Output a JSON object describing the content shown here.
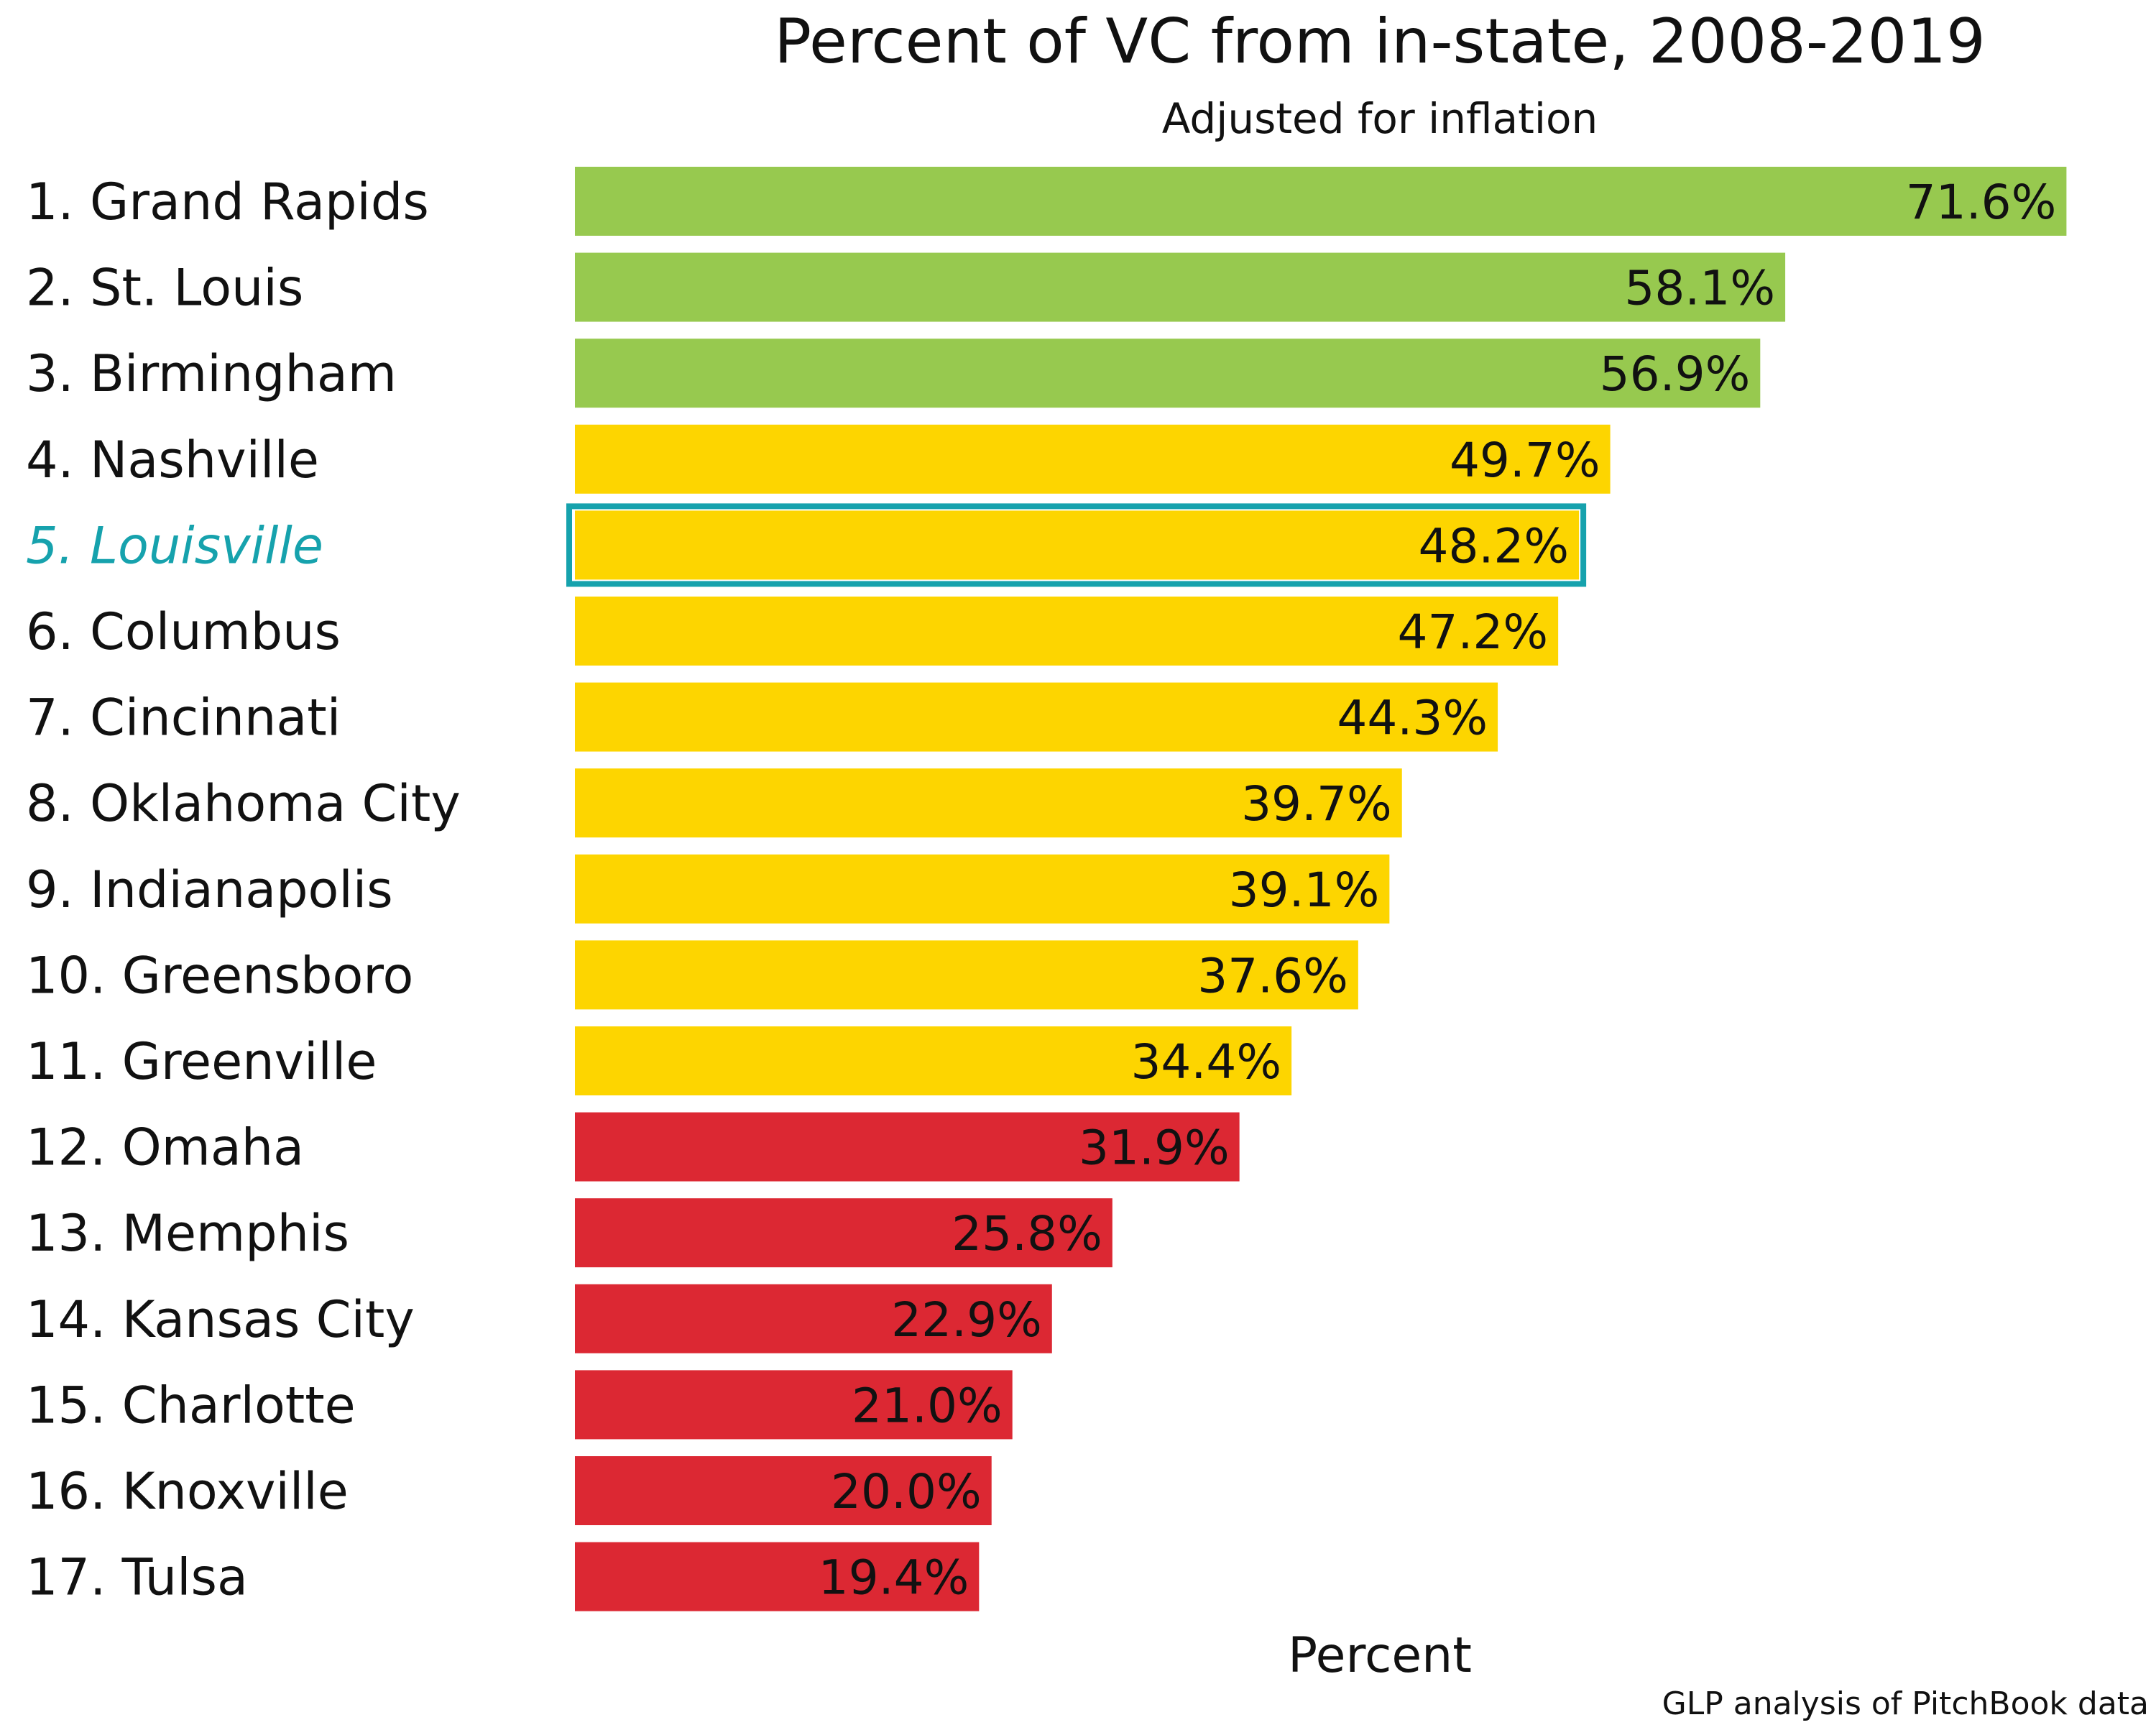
{
  "chart_data": {
    "type": "bar",
    "orientation": "horizontal",
    "title": "Percent of VC from in-state, 2008-2019",
    "subtitle": "Adjusted for inflation",
    "xlabel": "Percent",
    "ylabel": "",
    "source": "GLP analysis of PitchBook data",
    "xlim": [
      0,
      72
    ],
    "grid": false,
    "categories": [
      "1. Grand Rapids",
      "2. St. Louis",
      "3. Birmingham",
      "4. Nashville",
      "5. Louisville",
      "6. Columbus",
      "7. Cincinnati",
      "8. Oklahoma City",
      "9. Indianapolis",
      "10. Greensboro",
      "11. Greenville",
      "12. Omaha",
      "13. Memphis",
      "14. Kansas City",
      "15. Charlotte",
      "16. Knoxville",
      "17. Tulsa"
    ],
    "values": [
      71.6,
      58.1,
      56.9,
      49.7,
      48.2,
      47.2,
      44.3,
      39.7,
      39.1,
      37.6,
      34.4,
      31.9,
      25.8,
      22.9,
      21.0,
      20.0,
      19.4
    ],
    "value_labels": [
      "71.6%",
      "58.1%",
      "56.9%",
      "49.7%",
      "48.2%",
      "47.2%",
      "44.3%",
      "39.7%",
      "39.1%",
      "37.6%",
      "34.4%",
      "31.9%",
      "25.8%",
      "22.9%",
      "21.0%",
      "20.0%",
      "19.4%"
    ],
    "bar_colors": [
      "#97c94f",
      "#97c94f",
      "#97c94f",
      "#fdd500",
      "#fdd500",
      "#fdd500",
      "#fdd500",
      "#fdd500",
      "#fdd500",
      "#fdd500",
      "#fdd500",
      "#dc2833",
      "#dc2833",
      "#dc2833",
      "#dc2833",
      "#dc2833",
      "#dc2833"
    ],
    "highlight": {
      "category": "5. Louisville",
      "color": "#16a2ad"
    }
  }
}
